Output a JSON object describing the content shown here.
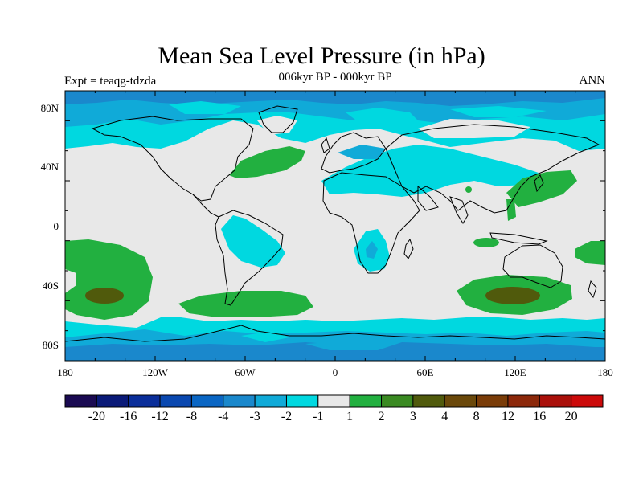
{
  "title": "Mean Sea Level Pressure (in hPa)",
  "subtitle": "006kyr BP - 000kyr BP",
  "left_label": "Expt = teaqg-tdzda",
  "right_label": "ANN",
  "lat_ticks": [
    "80N",
    "40N",
    "0",
    "40S",
    "80S"
  ],
  "lon_ticks": [
    "180",
    "120W",
    "60W",
    "0",
    "60E",
    "120E",
    "180"
  ],
  "colorbar": {
    "colors": [
      "#1a0a52",
      "#0a1a78",
      "#0a2e9a",
      "#0a48b0",
      "#0a66c4",
      "#1a88cc",
      "#10aad8",
      "#00d8e0",
      "#e8e8e8",
      "#22b040",
      "#3a8a22",
      "#505a0c",
      "#6a480a",
      "#7a3c08",
      "#8c280a",
      "#aa100a",
      "#cc0a0a"
    ],
    "labels": [
      "-20",
      "-16",
      "-12",
      "-8",
      "-4",
      "-3",
      "-2",
      "-1",
      "1",
      "2",
      "3",
      "4",
      "8",
      "12",
      "16",
      "20"
    ]
  },
  "palette": {
    "neutral": "#e8e8e8",
    "light_blue": "#00d8e0",
    "mid_blue": "#10aad8",
    "blue": "#1a88cc",
    "green": "#22b040",
    "dark_green": "#3a8a22",
    "olive": "#505a0c"
  }
}
